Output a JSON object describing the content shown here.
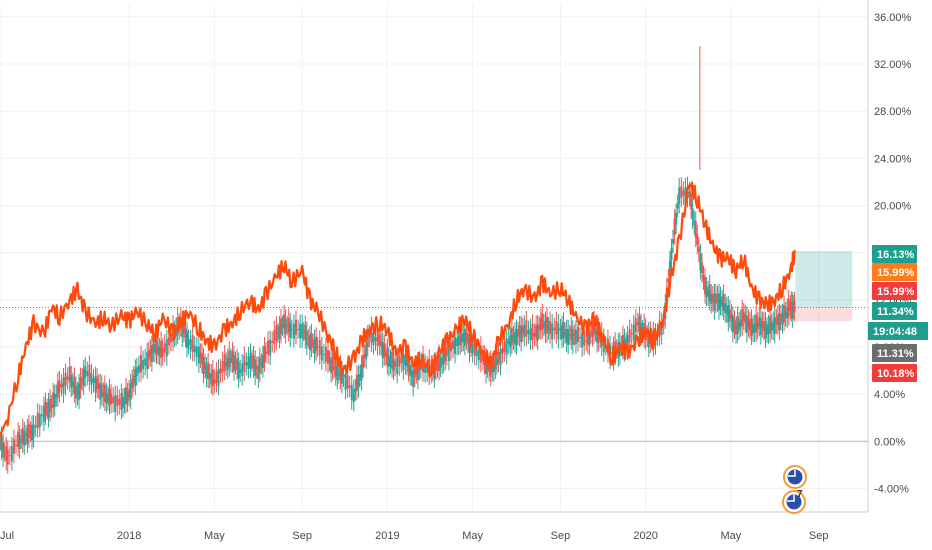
{
  "chart_data": {
    "type": "line",
    "title": "",
    "xlabel": "",
    "ylabel": "",
    "x_range": [
      2017.5,
      2020.83
    ],
    "ylim": [
      -6,
      37
    ],
    "y_ticks": [
      {
        "value": 36,
        "label": "36.00%"
      },
      {
        "value": 32,
        "label": "32.00%"
      },
      {
        "value": 28,
        "label": "28.00%"
      },
      {
        "value": 24,
        "label": "24.00%"
      },
      {
        "value": 20,
        "label": "20.00%"
      },
      {
        "value": 16,
        "label": "16.00%"
      },
      {
        "value": 12,
        "label": "12.00%"
      },
      {
        "value": 8,
        "label": "8.00%"
      },
      {
        "value": 4,
        "label": "4.00%"
      },
      {
        "value": 0,
        "label": "0.00%"
      },
      {
        "value": -4,
        "label": "-4.00%"
      }
    ],
    "x_ticks": [
      {
        "value": 2017.5,
        "label": "Jul"
      },
      {
        "value": 2018.0,
        "label": "2018"
      },
      {
        "value": 2018.33,
        "label": "May"
      },
      {
        "value": 2018.67,
        "label": "Sep"
      },
      {
        "value": 2019.0,
        "label": "2019"
      },
      {
        "value": 2019.33,
        "label": "May"
      },
      {
        "value": 2019.67,
        "label": "Sep"
      },
      {
        "value": 2020.0,
        "label": "2020"
      },
      {
        "value": 2020.33,
        "label": "May"
      },
      {
        "value": 2020.67,
        "label": "Sep"
      }
    ],
    "grid": true,
    "series": [
      {
        "name": "comparison-line",
        "color": "#ff4a0a",
        "x": [
          2017.5,
          2017.53,
          2017.57,
          2017.6,
          2017.63,
          2017.67,
          2017.7,
          2017.73,
          2017.77,
          2017.8,
          2017.83,
          2017.87,
          2017.9,
          2017.93,
          2017.97,
          2018.0,
          2018.03,
          2018.07,
          2018.1,
          2018.13,
          2018.17,
          2018.2,
          2018.23,
          2018.27,
          2018.3,
          2018.33,
          2018.37,
          2018.4,
          2018.43,
          2018.47,
          2018.5,
          2018.53,
          2018.57,
          2018.6,
          2018.63,
          2018.67,
          2018.7,
          2018.73,
          2018.77,
          2018.8,
          2018.83,
          2018.87,
          2018.9,
          2018.93,
          2018.97,
          2019.0,
          2019.03,
          2019.07,
          2019.1,
          2019.13,
          2019.17,
          2019.2,
          2019.23,
          2019.27,
          2019.3,
          2019.33,
          2019.37,
          2019.4,
          2019.43,
          2019.47,
          2019.5,
          2019.53,
          2019.57,
          2019.6,
          2019.63,
          2019.67,
          2019.7,
          2019.73,
          2019.77,
          2019.8,
          2019.83,
          2019.87,
          2019.9,
          2019.93,
          2019.97,
          2020.0,
          2020.03,
          2020.07,
          2020.1,
          2020.13,
          2020.17,
          2020.2,
          2020.23,
          2020.26,
          2020.29,
          2020.32,
          2020.35,
          2020.38,
          2020.41,
          2020.44,
          2020.47,
          2020.5,
          2020.53,
          2020.56,
          2020.58
        ],
        "values": [
          0.5,
          2.0,
          5.5,
          8.0,
          10.0,
          9.0,
          11.5,
          10.5,
          12.0,
          12.8,
          11.0,
          10.0,
          10.5,
          9.8,
          10.6,
          10.2,
          11.0,
          10.0,
          9.0,
          10.5,
          9.2,
          10.0,
          11.0,
          9.5,
          8.5,
          8.0,
          9.5,
          10.0,
          11.0,
          12.0,
          11.0,
          12.5,
          14.0,
          15.0,
          13.5,
          14.5,
          12.0,
          11.0,
          9.0,
          7.5,
          6.0,
          7.0,
          8.5,
          9.5,
          10.0,
          9.5,
          7.5,
          8.0,
          6.5,
          7.0,
          6.0,
          7.5,
          8.5,
          9.5,
          10.5,
          9.0,
          7.5,
          6.5,
          8.5,
          10.0,
          12.0,
          13.0,
          12.0,
          13.5,
          12.5,
          13.0,
          12.0,
          10.5,
          9.5,
          10.5,
          9.0,
          7.0,
          8.0,
          7.5,
          8.5,
          9.5,
          8.5,
          10.5,
          14.0,
          17.0,
          22.0,
          20.5,
          18.5,
          16.5,
          15.5,
          15.5,
          14.5,
          15.5,
          13.0,
          12.0,
          11.5,
          12.0,
          13.0,
          14.5,
          16.13
        ]
      },
      {
        "name": "candlestick-series",
        "color": "#26a69a",
        "x": [
          2017.5,
          2017.53,
          2017.57,
          2017.6,
          2017.63,
          2017.67,
          2017.7,
          2017.73,
          2017.77,
          2017.8,
          2017.83,
          2017.87,
          2017.9,
          2017.93,
          2017.97,
          2018.0,
          2018.03,
          2018.07,
          2018.1,
          2018.13,
          2018.17,
          2018.2,
          2018.23,
          2018.27,
          2018.3,
          2018.33,
          2018.37,
          2018.4,
          2018.43,
          2018.47,
          2018.5,
          2018.53,
          2018.57,
          2018.6,
          2018.63,
          2018.67,
          2018.7,
          2018.73,
          2018.77,
          2018.8,
          2018.83,
          2018.87,
          2018.9,
          2018.93,
          2018.97,
          2019.0,
          2019.03,
          2019.07,
          2019.1,
          2019.13,
          2019.17,
          2019.2,
          2019.23,
          2019.27,
          2019.3,
          2019.33,
          2019.37,
          2019.4,
          2019.43,
          2019.47,
          2019.5,
          2019.53,
          2019.57,
          2019.6,
          2019.63,
          2019.67,
          2019.7,
          2019.73,
          2019.77,
          2019.8,
          2019.83,
          2019.87,
          2019.9,
          2019.93,
          2019.97,
          2020.0,
          2020.03,
          2020.07,
          2020.1,
          2020.13,
          2020.17,
          2020.2,
          2020.23,
          2020.26,
          2020.29,
          2020.32,
          2020.35,
          2020.38,
          2020.41,
          2020.44,
          2020.47,
          2020.5,
          2020.53,
          2020.56,
          2020.58
        ],
        "values": [
          0.0,
          -1.5,
          0.0,
          0.5,
          1.0,
          2.5,
          3.0,
          4.5,
          5.5,
          4.0,
          6.0,
          5.0,
          4.0,
          3.5,
          3.2,
          4.0,
          6.0,
          7.0,
          8.0,
          7.5,
          9.0,
          10.0,
          8.5,
          7.5,
          6.0,
          5.0,
          6.5,
          7.0,
          6.0,
          7.0,
          6.0,
          7.5,
          9.0,
          10.0,
          9.5,
          9.5,
          8.5,
          8.0,
          7.0,
          6.0,
          5.5,
          4.0,
          6.0,
          9.0,
          8.5,
          7.0,
          6.5,
          7.0,
          5.5,
          6.5,
          6.0,
          6.5,
          7.5,
          8.5,
          9.0,
          8.0,
          7.0,
          6.0,
          7.0,
          8.5,
          9.0,
          9.5,
          9.0,
          10.0,
          9.5,
          9.5,
          9.0,
          9.0,
          8.5,
          9.5,
          8.5,
          7.5,
          8.0,
          8.5,
          10.0,
          9.0,
          8.5,
          10.0,
          16.0,
          21.0,
          21.0,
          17.0,
          13.0,
          12.0,
          12.0,
          11.0,
          9.5,
          10.5,
          9.5,
          10.0,
          9.5,
          10.0,
          10.5,
          11.3,
          11.31
        ]
      }
    ],
    "position_tool": {
      "entry": 11.34,
      "target": 16.13,
      "stop": 10.18,
      "x_start": 2020.58,
      "x_end": 2020.8
    },
    "price_tags": [
      {
        "value": 16.13,
        "label": "16.13%",
        "color": "#1e9e8c"
      },
      {
        "value": 15.99,
        "label": "15.99%",
        "color": "#ff7b1c"
      },
      {
        "value": 15.99,
        "label": "15.99%",
        "color": "#f23c3c"
      },
      {
        "value": 11.34,
        "label": "11.34%",
        "color": "#1e9e8c"
      },
      {
        "value": 11.31,
        "label": "19:04:48",
        "color": "#1e9e8c"
      },
      {
        "value": 11.31,
        "label": "11.31%",
        "color": "#6d6d6d"
      },
      {
        "value": 10.18,
        "label": "10.18%",
        "color": "#f23c3c"
      }
    ],
    "event_badge_count": "7"
  }
}
